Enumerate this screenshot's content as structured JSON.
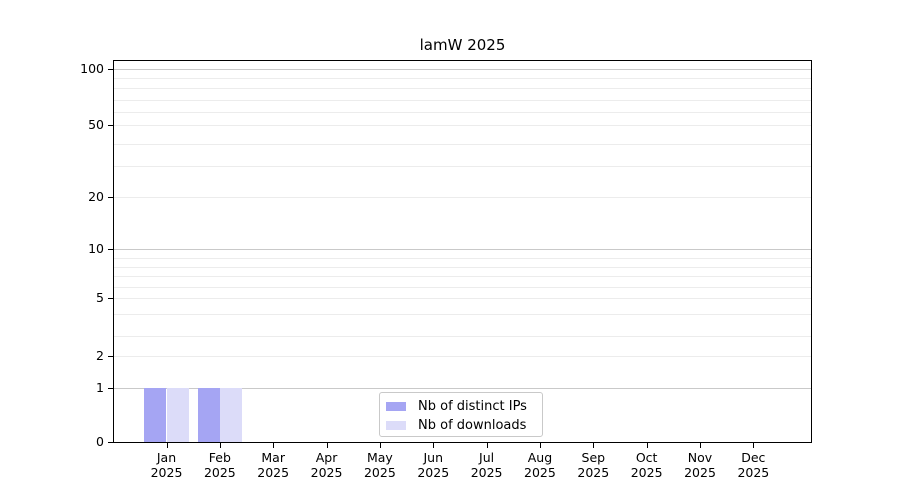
{
  "chart_data": {
    "type": "bar",
    "title": "lamW 2025",
    "categories": [
      "Jan 2025",
      "Feb 2025",
      "Mar 2025",
      "Apr 2025",
      "May 2025",
      "Jun 2025",
      "Jul 2025",
      "Aug 2025",
      "Sep 2025",
      "Oct 2025",
      "Nov 2025",
      "Dec 2025"
    ],
    "x_tick_line1": [
      "Jan",
      "Feb",
      "Mar",
      "Apr",
      "May",
      "Jun",
      "Jul",
      "Aug",
      "Sep",
      "Oct",
      "Nov",
      "Dec"
    ],
    "x_tick_line2": "2025",
    "series": [
      {
        "name": "Nb of distinct IPs",
        "color": "#a5a5f3",
        "values": [
          1,
          1,
          0,
          0,
          0,
          0,
          0,
          0,
          0,
          0,
          0,
          0
        ]
      },
      {
        "name": "Nb of downloads",
        "color": "#dcdcf9",
        "values": [
          1,
          1,
          0,
          0,
          0,
          0,
          0,
          0,
          0,
          0,
          0,
          0
        ]
      }
    ],
    "y_axis": {
      "scale": "log-like with 0 baseline",
      "labeled_ticks": [
        0,
        1,
        2,
        5,
        10,
        20,
        50,
        100
      ],
      "minor_ticks": [
        3,
        4,
        6,
        7,
        8,
        9,
        30,
        40,
        60,
        70,
        80,
        90
      ],
      "range_top": 110
    },
    "legend": {
      "position": "bottom-center",
      "entries": [
        "Nb of distinct IPs",
        "Nb of downloads"
      ]
    },
    "grid": "horizontal, darker lines at powers of 10"
  },
  "colors": {
    "bar_distinct_ips": "#a5a5f3",
    "bar_downloads": "#dcdcf9",
    "grid_major": "#c9c9c9",
    "grid_minor": "#ececec",
    "axis": "#000000",
    "legend_border": "#c9c9c9",
    "text": "#000000",
    "background": "#ffffff"
  }
}
